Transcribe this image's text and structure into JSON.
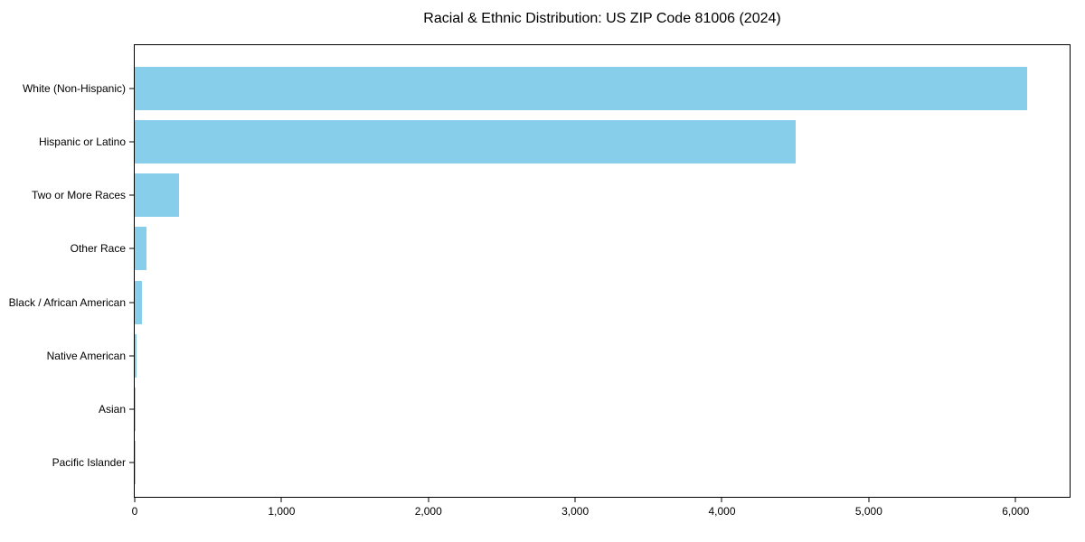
{
  "title": "Racial & Ethnic Distribution: US ZIP Code 81006 (2024)",
  "chart_data": {
    "type": "bar",
    "orientation": "horizontal",
    "title": "Racial & Ethnic Distribution: US ZIP Code 81006 (2024)",
    "xlabel": "",
    "ylabel": "",
    "categories": [
      "White (Non-Hispanic)",
      "Hispanic or Latino",
      "Two or More Races",
      "Other Race",
      "Black / African American",
      "Native American",
      "Asian",
      "Pacific Islander"
    ],
    "values": [
      6080,
      4500,
      300,
      80,
      50,
      15,
      8,
      3
    ],
    "xlim": [
      0,
      6368
    ],
    "x_ticks": [
      0,
      1000,
      2000,
      3000,
      4000,
      5000,
      6000
    ],
    "x_tick_labels": [
      "0",
      "1,000",
      "2,000",
      "3,000",
      "4,000",
      "5,000",
      "6,000"
    ],
    "bar_color": "#87CEEB",
    "spine_color": "#000000",
    "background_color": "#ffffff",
    "grid": false,
    "legend": null
  }
}
